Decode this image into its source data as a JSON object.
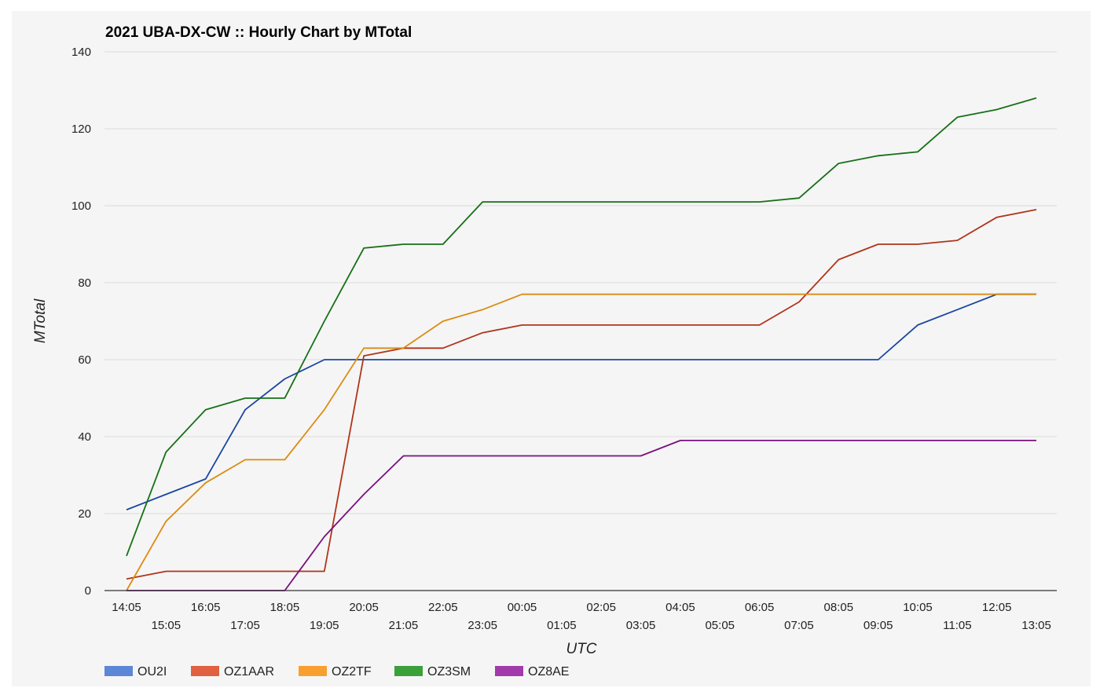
{
  "chart_data": {
    "type": "line",
    "title": "2021 UBA-DX-CW :: Hourly Chart by MTotal",
    "xlabel": "UTC",
    "ylabel": "MTotal",
    "ylim": [
      0,
      140
    ],
    "yticks": [
      0,
      20,
      40,
      60,
      80,
      100,
      120,
      140
    ],
    "grid": true,
    "legend_position": "bottom",
    "categories": [
      "14:05",
      "15:05",
      "16:05",
      "17:05",
      "18:05",
      "19:05",
      "20:05",
      "21:05",
      "22:05",
      "23:05",
      "00:05",
      "01:05",
      "02:05",
      "03:05",
      "04:05",
      "05:05",
      "06:05",
      "07:05",
      "08:05",
      "09:05",
      "10:05",
      "11:05",
      "12:05",
      "13:05"
    ],
    "series": [
      {
        "name": "OU2I",
        "legend_color": "#5b87d6",
        "color": "#1a47a0",
        "values": [
          21,
          25,
          29,
          47,
          55,
          60,
          60,
          60,
          60,
          60,
          60,
          60,
          60,
          60,
          60,
          60,
          60,
          60,
          60,
          60,
          69,
          73,
          77,
          77
        ]
      },
      {
        "name": "OZ1AAR",
        "legend_color": "#e0603f",
        "color": "#b0341a",
        "values": [
          3,
          5,
          5,
          5,
          5,
          5,
          61,
          63,
          63,
          67,
          69,
          69,
          69,
          69,
          69,
          69,
          69,
          75,
          86,
          90,
          90,
          91,
          97,
          99
        ]
      },
      {
        "name": "OZ2TF",
        "legend_color": "#f7a030",
        "color": "#dc8c12",
        "values": [
          0,
          18,
          28,
          34,
          34,
          47,
          63,
          63,
          70,
          73,
          77,
          77,
          77,
          77,
          77,
          77,
          77,
          77,
          77,
          77,
          77,
          77,
          77,
          77
        ]
      },
      {
        "name": "OZ3SM",
        "legend_color": "#3aa03a",
        "color": "#167016",
        "values": [
          9,
          36,
          47,
          50,
          50,
          70,
          89,
          90,
          90,
          101,
          101,
          101,
          101,
          101,
          101,
          101,
          101,
          102,
          111,
          113,
          114,
          123,
          125,
          128
        ]
      },
      {
        "name": "OZ8AE",
        "legend_color": "#a23aab",
        "color": "#7a107f",
        "values": [
          0,
          0,
          0,
          0,
          0,
          14,
          25,
          35,
          35,
          35,
          35,
          35,
          35,
          35,
          39,
          39,
          39,
          39,
          39,
          39,
          39,
          39,
          39,
          39
        ]
      }
    ]
  }
}
